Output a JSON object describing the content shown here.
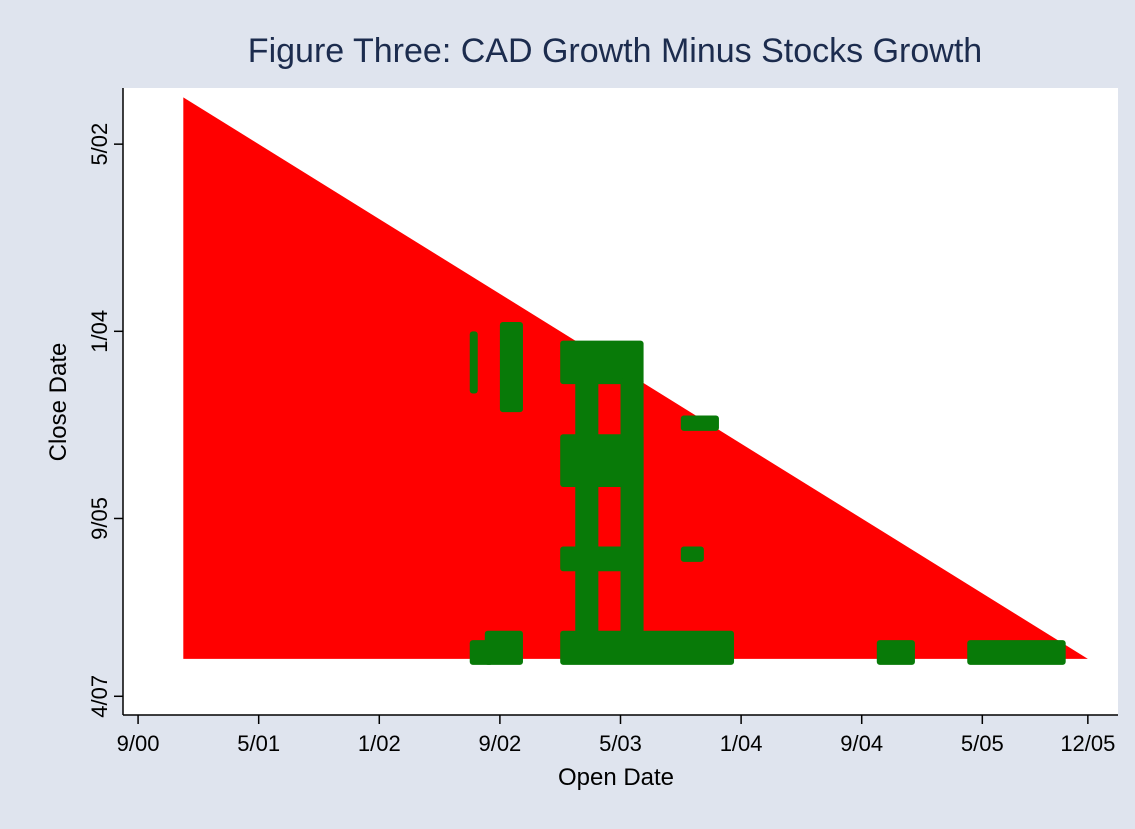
{
  "chart_data": {
    "type": "region",
    "title": "Figure Three: CAD Growth Minus Stocks Growth",
    "xlabel": "Open Date",
    "ylabel": "Close Date",
    "xlim": [
      "2000-08",
      "2006-02"
    ],
    "ylim": [
      "2001-11",
      "2007-06"
    ],
    "y_inverted": true,
    "xticks": [
      {
        "value": "2000-09",
        "label": "9/00"
      },
      {
        "value": "2001-05",
        "label": "5/01"
      },
      {
        "value": "2002-01",
        "label": "1/02"
      },
      {
        "value": "2002-09",
        "label": "9/02"
      },
      {
        "value": "2003-05",
        "label": "5/03"
      },
      {
        "value": "2004-01",
        "label": "1/04"
      },
      {
        "value": "2004-09",
        "label": "9/04"
      },
      {
        "value": "2005-05",
        "label": "5/05"
      },
      {
        "value": "2005-12",
        "label": "12/05"
      }
    ],
    "yticks": [
      {
        "value": "2002-05",
        "label": "5/02"
      },
      {
        "value": "2004-01",
        "label": "1/04"
      },
      {
        "value": "2005-09",
        "label": "9/05"
      },
      {
        "value": "2007-04",
        "label": "4/07"
      }
    ],
    "region": {
      "color": "#ff0000",
      "x": [
        "2000-12",
        "2000-12",
        "2005-12"
      ],
      "y": [
        "2001-12",
        "2006-12",
        "2006-12"
      ]
    },
    "patches": {
      "color": "#087a08",
      "items": [
        {
          "x": [
            "2002-07",
            "2002-07"
          ],
          "y": [
            "2004-01",
            "2004-07"
          ]
        },
        {
          "x": [
            "2002-09",
            "2002-10"
          ],
          "y": [
            "2003-12",
            "2004-09"
          ]
        },
        {
          "x": [
            "2003-01",
            "2003-06"
          ],
          "y": [
            "2004-02",
            "2004-06"
          ]
        },
        {
          "x": [
            "2003-02",
            "2003-03"
          ],
          "y": [
            "2004-06",
            "2006-10"
          ]
        },
        {
          "x": [
            "2003-05",
            "2003-06"
          ],
          "y": [
            "2004-06",
            "2006-10"
          ]
        },
        {
          "x": [
            "2003-01",
            "2003-12"
          ],
          "y": [
            "2006-09",
            "2006-12"
          ]
        },
        {
          "x": [
            "2002-08",
            "2002-10"
          ],
          "y": [
            "2006-09",
            "2006-12"
          ]
        },
        {
          "x": [
            "2002-07",
            "2002-08"
          ],
          "y": [
            "2006-10",
            "2006-12"
          ]
        },
        {
          "x": [
            "2005-04",
            "2005-10"
          ],
          "y": [
            "2006-10",
            "2006-12"
          ]
        },
        {
          "x": [
            "2004-10",
            "2004-12"
          ],
          "y": [
            "2006-10",
            "2006-12"
          ]
        },
        {
          "x": [
            "2003-09",
            "2003-10"
          ],
          "y": [
            "2005-12",
            "2006-01"
          ]
        },
        {
          "x": [
            "2003-09",
            "2003-11"
          ],
          "y": [
            "2004-10",
            "2004-11"
          ]
        },
        {
          "x": [
            "2003-01",
            "2003-06"
          ],
          "y": [
            "2004-12",
            "2005-05"
          ]
        },
        {
          "x": [
            "2003-01",
            "2003-06"
          ],
          "y": [
            "2005-12",
            "2006-02"
          ]
        }
      ]
    }
  }
}
